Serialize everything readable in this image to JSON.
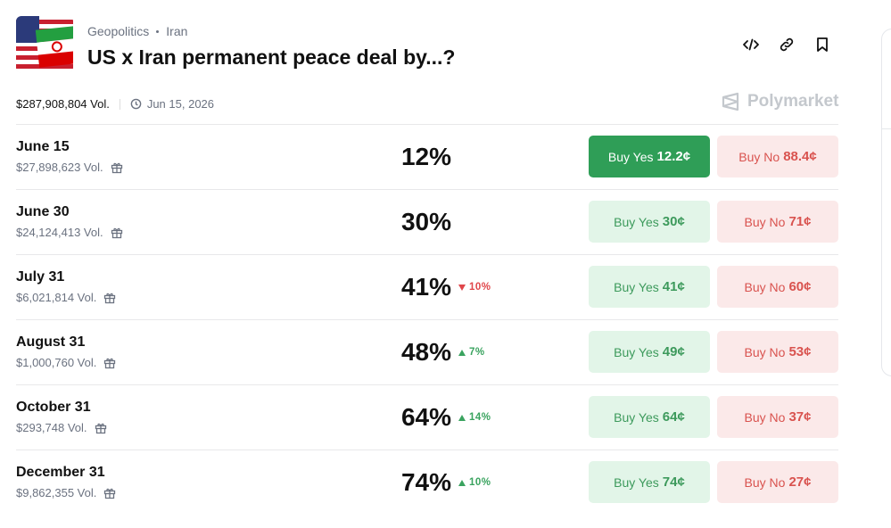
{
  "header": {
    "breadcrumb": [
      "Geopolitics",
      "Iran"
    ],
    "title": "US x Iran permanent peace deal by...?",
    "volume": "$287,908,804 Vol.",
    "end_date": "Jun 15, 2026",
    "brand": "Polymarket"
  },
  "buttons": {
    "yes": "Buy Yes",
    "no": "Buy No"
  },
  "rows": [
    {
      "name": "June 15",
      "volume": "$27,898,623 Vol.",
      "chance": "12%",
      "change": null,
      "yes_price": "12.2¢",
      "no_price": "88.4¢",
      "selected": true
    },
    {
      "name": "June 30",
      "volume": "$24,124,413 Vol.",
      "chance": "30%",
      "change": null,
      "yes_price": "30¢",
      "no_price": "71¢",
      "selected": false
    },
    {
      "name": "July 31",
      "volume": "$6,021,814 Vol.",
      "chance": "41%",
      "change": {
        "direction": "down",
        "label": "10%"
      },
      "yes_price": "41¢",
      "no_price": "60¢",
      "selected": false
    },
    {
      "name": "August 31",
      "volume": "$1,000,760 Vol.",
      "chance": "48%",
      "change": {
        "direction": "up",
        "label": "7%"
      },
      "yes_price": "49¢",
      "no_price": "53¢",
      "selected": false
    },
    {
      "name": "October 31",
      "volume": "$293,748 Vol.",
      "chance": "64%",
      "change": {
        "direction": "up",
        "label": "14%"
      },
      "yes_price": "64¢",
      "no_price": "37¢",
      "selected": false
    },
    {
      "name": "December 31",
      "volume": "$9,862,355 Vol.",
      "chance": "74%",
      "change": {
        "direction": "up",
        "label": "10%"
      },
      "yes_price": "74¢",
      "no_price": "27¢",
      "selected": false
    }
  ]
}
